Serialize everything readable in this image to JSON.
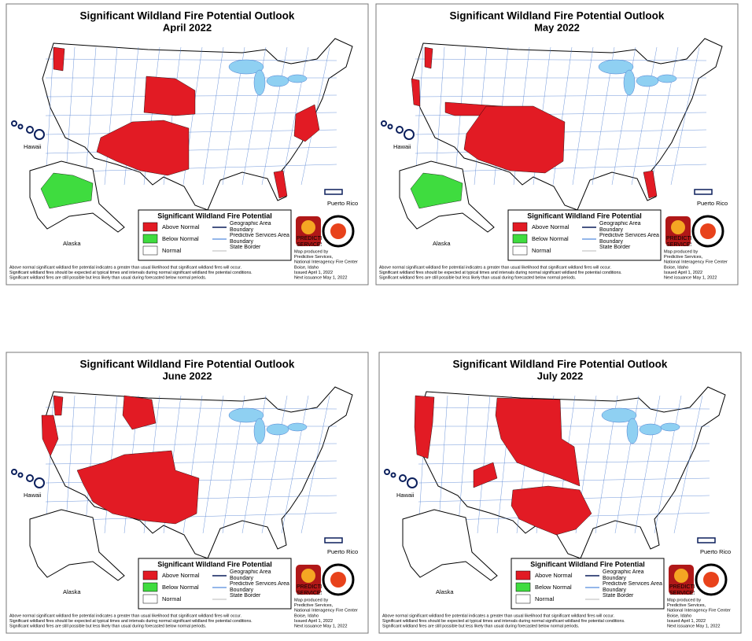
{
  "panels": [
    {
      "title": "Significant Wildland Fire Potential Outlook",
      "period": "April 2022"
    },
    {
      "title": "Significant Wildland Fire Potential Outlook",
      "period": "May 2022"
    },
    {
      "title": "Significant Wildland Fire Potential Outlook",
      "period": "June 2022"
    },
    {
      "title": "Significant Wildland Fire Potential Outlook",
      "period": "July 2022"
    }
  ],
  "legend": {
    "title": "Significant Wildland Fire Potential",
    "items": [
      "Above Normal",
      "Below Normal",
      "Normal",
      "Geographic Area Boundary",
      "Predictive Services Area Boundary",
      "State Border"
    ]
  },
  "place_labels": [
    "Hawaii",
    "Alaska",
    "Puerto Rico"
  ],
  "logo_text": "PREDICTIVE SERVICES",
  "credit": [
    "Map produced by",
    "Predictive Services,",
    "National Interagency Fire Center",
    "Boise, Idaho",
    "Issued April 1, 2022",
    "Next issuance May 1, 2022"
  ],
  "notes": [
    "Above normal significant wildland fire potential indicates a greater than usual likelihood that significant wildland fires will occur.",
    "Significant wildland fires should be expected at typical times and intervals during normal significant wildland fire potential conditions.",
    "Significant wildland fires are still possible but less likely than usual during forecasted below normal periods."
  ]
}
